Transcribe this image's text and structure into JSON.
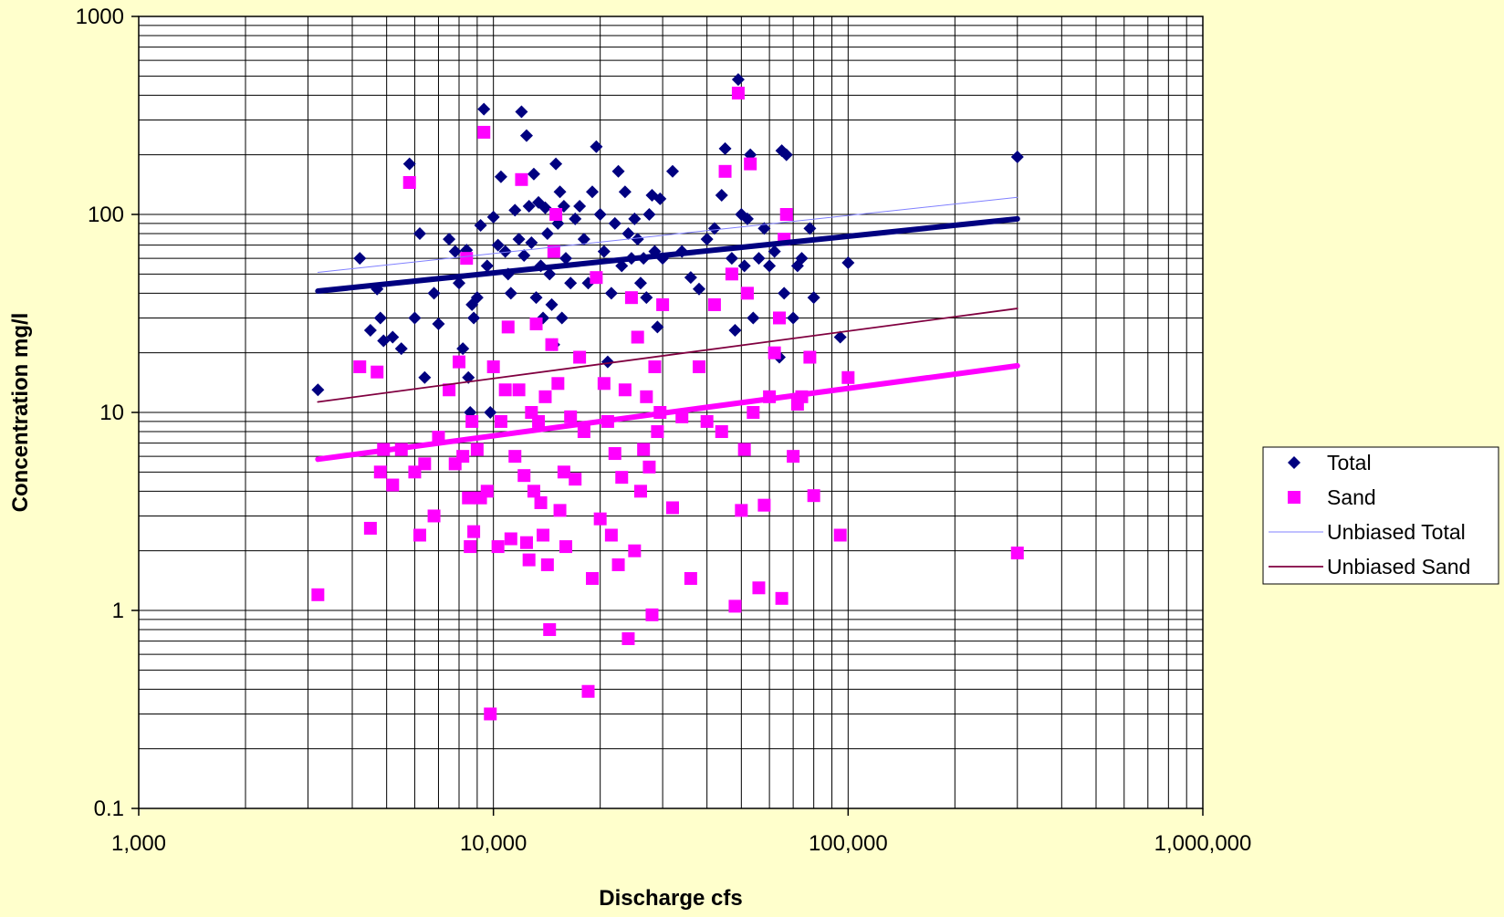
{
  "chart_data": {
    "type": "scatter",
    "title": "",
    "xlabel": "Discharge cfs",
    "ylabel": "Concentration  mg/l",
    "xscale": "log",
    "yscale": "log",
    "xlim": [
      1000,
      1000000
    ],
    "ylim": [
      0.1,
      1000
    ],
    "x_ticks": [
      {
        "value": 1000,
        "label": "1,000"
      },
      {
        "value": 10000,
        "label": "10,000"
      },
      {
        "value": 100000,
        "label": "100,000"
      },
      {
        "value": 1000000,
        "label": "1,000,000"
      }
    ],
    "y_ticks": [
      {
        "value": 0.1,
        "label": "0.1"
      },
      {
        "value": 1,
        "label": "1"
      },
      {
        "value": 10,
        "label": "10"
      },
      {
        "value": 100,
        "label": "100"
      },
      {
        "value": 1000,
        "label": "1000"
      }
    ],
    "grid": true,
    "legend_position": "right",
    "series": [
      {
        "name": "Total",
        "kind": "scatter",
        "marker": "diamond",
        "color": "#000080",
        "points": [
          [
            3200,
            13
          ],
          [
            4200,
            60
          ],
          [
            4500,
            26
          ],
          [
            4700,
            42
          ],
          [
            4800,
            30
          ],
          [
            4900,
            23
          ],
          [
            5200,
            24
          ],
          [
            5500,
            21
          ],
          [
            5800,
            180
          ],
          [
            6000,
            30
          ],
          [
            6200,
            80
          ],
          [
            6400,
            15
          ],
          [
            6800,
            40
          ],
          [
            7000,
            28
          ],
          [
            7500,
            75
          ],
          [
            7800,
            65
          ],
          [
            8000,
            45
          ],
          [
            8200,
            21
          ],
          [
            8400,
            66
          ],
          [
            8500,
            15
          ],
          [
            8600,
            10
          ],
          [
            8700,
            35
          ],
          [
            8800,
            30
          ],
          [
            9000,
            38
          ],
          [
            9200,
            88
          ],
          [
            9400,
            340
          ],
          [
            9600,
            55
          ],
          [
            9800,
            10
          ],
          [
            10000,
            97
          ],
          [
            10300,
            70
          ],
          [
            10500,
            155
          ],
          [
            10800,
            65
          ],
          [
            11000,
            50
          ],
          [
            11200,
            40
          ],
          [
            11500,
            105
          ],
          [
            11800,
            75
          ],
          [
            12000,
            330
          ],
          [
            12200,
            62
          ],
          [
            12400,
            250
          ],
          [
            12600,
            110
          ],
          [
            12800,
            72
          ],
          [
            13000,
            160
          ],
          [
            13200,
            38
          ],
          [
            13400,
            115
          ],
          [
            13600,
            55
          ],
          [
            13800,
            30
          ],
          [
            14000,
            108
          ],
          [
            14200,
            80
          ],
          [
            14400,
            50
          ],
          [
            14600,
            35
          ],
          [
            14800,
            22
          ],
          [
            15000,
            180
          ],
          [
            15200,
            90
          ],
          [
            15400,
            130
          ],
          [
            15600,
            30
          ],
          [
            15800,
            110
          ],
          [
            16000,
            60
          ],
          [
            16500,
            45
          ],
          [
            17000,
            95
          ],
          [
            17500,
            110
          ],
          [
            18000,
            75
          ],
          [
            18500,
            45
          ],
          [
            19000,
            130
          ],
          [
            19500,
            220
          ],
          [
            20000,
            100
          ],
          [
            20500,
            65
          ],
          [
            21000,
            18
          ],
          [
            21500,
            40
          ],
          [
            22000,
            90
          ],
          [
            22500,
            165
          ],
          [
            23000,
            55
          ],
          [
            23500,
            130
          ],
          [
            24000,
            80
          ],
          [
            24500,
            60
          ],
          [
            25000,
            95
          ],
          [
            25500,
            75
          ],
          [
            26000,
            45
          ],
          [
            26500,
            60
          ],
          [
            27000,
            38
          ],
          [
            27500,
            100
          ],
          [
            28000,
            125
          ],
          [
            28500,
            65
          ],
          [
            29000,
            27
          ],
          [
            29500,
            120
          ],
          [
            30000,
            60
          ],
          [
            32000,
            165
          ],
          [
            34000,
            65
          ],
          [
            36000,
            48
          ],
          [
            38000,
            42
          ],
          [
            40000,
            75
          ],
          [
            42000,
            85
          ],
          [
            44000,
            125
          ],
          [
            45000,
            215
          ],
          [
            47000,
            60
          ],
          [
            48000,
            26
          ],
          [
            49000,
            480
          ],
          [
            50000,
            100
          ],
          [
            51000,
            55
          ],
          [
            52000,
            95
          ],
          [
            53000,
            200
          ],
          [
            54000,
            30
          ],
          [
            56000,
            60
          ],
          [
            58000,
            85
          ],
          [
            60000,
            55
          ],
          [
            62000,
            65
          ],
          [
            64000,
            19
          ],
          [
            65000,
            210
          ],
          [
            66000,
            40
          ],
          [
            67000,
            200
          ],
          [
            70000,
            30
          ],
          [
            72000,
            55
          ],
          [
            74000,
            60
          ],
          [
            78000,
            85
          ],
          [
            80000,
            38
          ],
          [
            95000,
            24
          ],
          [
            100000,
            57
          ],
          [
            300000,
            195
          ]
        ]
      },
      {
        "name": "Sand",
        "kind": "scatter",
        "marker": "square",
        "color": "#FF00FF",
        "points": [
          [
            3200,
            1.2
          ],
          [
            4200,
            17
          ],
          [
            4500,
            2.6
          ],
          [
            4700,
            16
          ],
          [
            4800,
            5
          ],
          [
            4900,
            6.5
          ],
          [
            5200,
            4.3
          ],
          [
            5500,
            6.5
          ],
          [
            5800,
            145
          ],
          [
            6000,
            5
          ],
          [
            6200,
            2.4
          ],
          [
            6400,
            5.5
          ],
          [
            6800,
            3
          ],
          [
            7000,
            7.5
          ],
          [
            7500,
            13
          ],
          [
            7800,
            5.5
          ],
          [
            8000,
            18
          ],
          [
            8200,
            6
          ],
          [
            8400,
            60
          ],
          [
            8500,
            3.7
          ],
          [
            8600,
            2.1
          ],
          [
            8700,
            9
          ],
          [
            8800,
            2.5
          ],
          [
            9000,
            6.5
          ],
          [
            9200,
            3.7
          ],
          [
            9400,
            260
          ],
          [
            9600,
            4
          ],
          [
            9800,
            0.3
          ],
          [
            10000,
            17
          ],
          [
            10300,
            2.1
          ],
          [
            10500,
            9
          ],
          [
            10800,
            13
          ],
          [
            11000,
            27
          ],
          [
            11200,
            2.3
          ],
          [
            11500,
            6
          ],
          [
            11800,
            13
          ],
          [
            12000,
            150
          ],
          [
            12200,
            4.8
          ],
          [
            12400,
            2.2
          ],
          [
            12600,
            1.8
          ],
          [
            12800,
            10
          ],
          [
            13000,
            4
          ],
          [
            13200,
            28
          ],
          [
            13400,
            9
          ],
          [
            13600,
            3.5
          ],
          [
            13800,
            2.4
          ],
          [
            14000,
            12
          ],
          [
            14200,
            1.7
          ],
          [
            14400,
            0.8
          ],
          [
            14600,
            22
          ],
          [
            14800,
            65
          ],
          [
            15000,
            100
          ],
          [
            15200,
            14
          ],
          [
            15400,
            3.2
          ],
          [
            15800,
            5
          ],
          [
            16000,
            2.1
          ],
          [
            16500,
            9.5
          ],
          [
            17000,
            4.6
          ],
          [
            17500,
            19
          ],
          [
            18000,
            8
          ],
          [
            18500,
            0.39
          ],
          [
            19000,
            1.45
          ],
          [
            19500,
            48
          ],
          [
            20000,
            2.9
          ],
          [
            20500,
            14
          ],
          [
            21000,
            9
          ],
          [
            21500,
            2.4
          ],
          [
            22000,
            6.2
          ],
          [
            22500,
            1.7
          ],
          [
            23000,
            4.7
          ],
          [
            23500,
            13
          ],
          [
            24000,
            0.72
          ],
          [
            24500,
            38
          ],
          [
            25000,
            2
          ],
          [
            25500,
            24
          ],
          [
            26000,
            4
          ],
          [
            26500,
            6.5
          ],
          [
            27000,
            12
          ],
          [
            27500,
            5.3
          ],
          [
            28000,
            0.95
          ],
          [
            28500,
            17
          ],
          [
            29000,
            8
          ],
          [
            29500,
            10
          ],
          [
            30000,
            35
          ],
          [
            32000,
            3.3
          ],
          [
            34000,
            9.5
          ],
          [
            36000,
            1.45
          ],
          [
            38000,
            17
          ],
          [
            40000,
            9
          ],
          [
            42000,
            35
          ],
          [
            44000,
            8
          ],
          [
            45000,
            165
          ],
          [
            47000,
            50
          ],
          [
            48000,
            1.05
          ],
          [
            49000,
            410
          ],
          [
            50000,
            3.2
          ],
          [
            51000,
            6.5
          ],
          [
            52000,
            40
          ],
          [
            53000,
            180
          ],
          [
            54000,
            10
          ],
          [
            56000,
            1.3
          ],
          [
            58000,
            3.4
          ],
          [
            60000,
            12
          ],
          [
            62000,
            20
          ],
          [
            64000,
            30
          ],
          [
            65000,
            1.15
          ],
          [
            66000,
            75
          ],
          [
            67000,
            100
          ],
          [
            70000,
            6
          ],
          [
            72000,
            11
          ],
          [
            74000,
            12
          ],
          [
            78000,
            19
          ],
          [
            80000,
            3.8
          ],
          [
            95000,
            2.4
          ],
          [
            100000,
            15
          ],
          [
            300000,
            1.95
          ]
        ]
      },
      {
        "name": "Unbiased Total",
        "kind": "line",
        "color": "#8080FF",
        "width": 1,
        "points": [
          [
            3200,
            51
          ],
          [
            300000,
            122
          ]
        ]
      },
      {
        "name": "Unbiased Sand",
        "kind": "line",
        "color": "#800040",
        "width": 1.8,
        "points": [
          [
            3200,
            11.3
          ],
          [
            300000,
            33.5
          ]
        ]
      },
      {
        "kind": "line",
        "color": "#000080",
        "width": 6,
        "points": [
          [
            3200,
            41
          ],
          [
            300000,
            95
          ]
        ]
      },
      {
        "kind": "line",
        "color": "#FF00FF",
        "width": 6,
        "points": [
          [
            3200,
            5.8
          ],
          [
            300000,
            17.2
          ]
        ]
      }
    ]
  }
}
